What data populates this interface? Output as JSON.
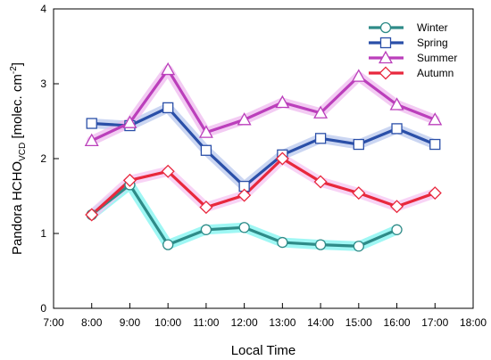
{
  "chart_data": {
    "type": "line",
    "x_categories": [
      "7:00",
      "8:00",
      "9:00",
      "10:00",
      "11:00",
      "12:00",
      "13:00",
      "14:00",
      "15:00",
      "16:00",
      "17:00",
      "18:00"
    ],
    "y_ticks": [
      "0",
      "1",
      "2",
      "3",
      "4"
    ],
    "ylim": [
      0,
      4
    ],
    "xlabel": "Local Time",
    "ylabel": {
      "main": "Pandora HCHO",
      "subscript": "VCD",
      "unit_prefix": " [molec. cm",
      "unit_sup": "-2",
      "unit_suffix": "]"
    },
    "legend_position": "top-right",
    "grid": false,
    "series": [
      {
        "name": "Winter",
        "marker": "circle",
        "color": "#2e8b88",
        "glow": "#7ff4f0",
        "x": [
          "8:00",
          "9:00",
          "10:00",
          "11:00",
          "12:00",
          "13:00",
          "14:00",
          "15:00",
          "16:00"
        ],
        "values": [
          1.25,
          1.65,
          0.85,
          1.05,
          1.08,
          0.88,
          0.85,
          0.83,
          1.05
        ]
      },
      {
        "name": "Spring",
        "marker": "square",
        "color": "#2a4fa8",
        "glow": "#b9c8ee",
        "x": [
          "8:00",
          "9:00",
          "10:00",
          "11:00",
          "12:00",
          "13:00",
          "14:00",
          "15:00",
          "16:00",
          "17:00"
        ],
        "values": [
          2.47,
          2.44,
          2.68,
          2.11,
          1.63,
          2.05,
          2.27,
          2.19,
          2.4,
          2.19
        ]
      },
      {
        "name": "Summer",
        "marker": "triangle",
        "color": "#bb3fbb",
        "glow": "#efb9ef",
        "x": [
          "8:00",
          "9:00",
          "10:00",
          "11:00",
          "12:00",
          "13:00",
          "14:00",
          "15:00",
          "16:00",
          "17:00"
        ],
        "values": [
          2.24,
          2.48,
          3.19,
          2.35,
          2.52,
          2.75,
          2.61,
          3.1,
          2.72,
          2.52
        ]
      },
      {
        "name": "Autumn",
        "marker": "diamond",
        "color": "#e8283d",
        "glow": "#f6c4f2",
        "x": [
          "8:00",
          "9:00",
          "10:00",
          "11:00",
          "12:00",
          "13:00",
          "14:00",
          "15:00",
          "16:00",
          "17:00"
        ],
        "values": [
          1.25,
          1.71,
          1.83,
          1.35,
          1.51,
          2.0,
          1.69,
          1.54,
          1.36,
          1.54
        ]
      }
    ]
  }
}
